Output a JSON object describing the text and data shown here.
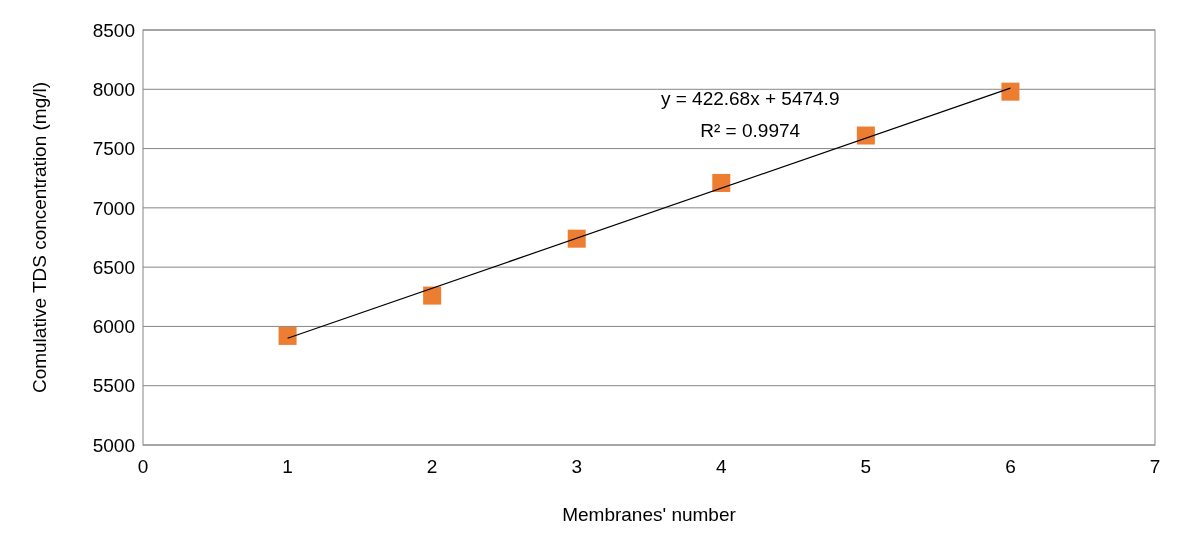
{
  "chart_data": {
    "type": "scatter",
    "xlabel": "Membranes' number",
    "ylabel": "Comulative TDS concentration (mg/l)",
    "x": [
      1,
      2,
      3,
      4,
      5,
      6
    ],
    "series": [
      {
        "color": "#ed7d31",
        "marker": "square",
        "values": [
          5920,
          6260,
          6740,
          7210,
          7610,
          7980
        ]
      },
      {
        "type": "line",
        "color": "#000000",
        "marker": "none",
        "x": [
          1,
          6
        ],
        "values": [
          5900,
          8010
        ]
      }
    ],
    "xlim": [
      0,
      7
    ],
    "xticks": [
      0,
      1,
      2,
      3,
      4,
      5,
      6,
      7
    ],
    "ylim": [
      5000,
      8500
    ],
    "yticks": [
      5000,
      5500,
      6000,
      6500,
      7000,
      7500,
      8000,
      8500
    ],
    "grid": "y",
    "annotations": [
      "y = 422.68x + 5474.9",
      "R² = 0.9974"
    ]
  }
}
